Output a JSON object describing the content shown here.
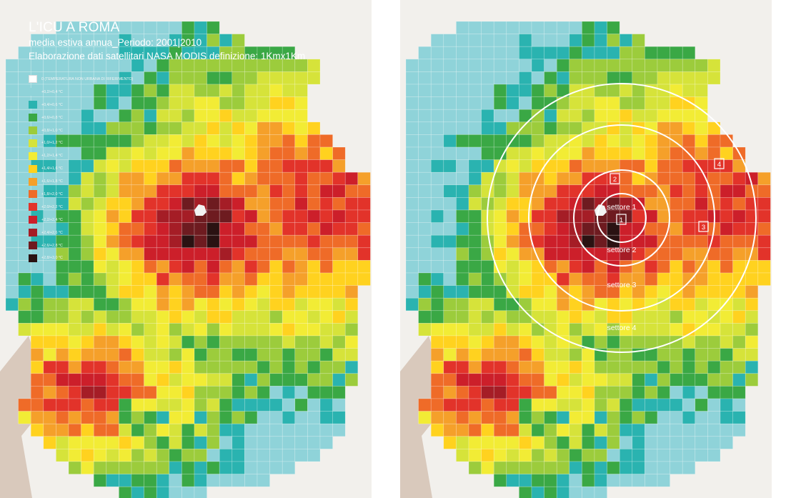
{
  "map": {
    "title": "L'ICU A ROMA",
    "subtitle_period": "media estiva annua_Periodo: 2001|2010",
    "subtitle_source": "Elaborazione dati  satellitari NASA MODIS definizione: 1Kmx1Km",
    "legend": [
      {
        "label": "0 (TEMPERATURA NON URBANA DI RIFERIMENTO)",
        "color": "#ffffff"
      },
      {
        "label": "+0,2/+0,4 °C",
        "color": "#8fd3d9"
      },
      {
        "label": "+0,4/+0,6 °C",
        "color": "#2ab3b0"
      },
      {
        "label": "+0,6/+0,8 °C",
        "color": "#3aa845"
      },
      {
        "label": "+0,8/+1,0 °C",
        "color": "#9ccc3c"
      },
      {
        "label": "+1,0/+1,2 °C",
        "color": "#d6e33a"
      },
      {
        "label": "+1,2/+1,4 °C",
        "color": "#f2ec35"
      },
      {
        "label": "+1,4/+1,6 °C",
        "color": "#ffd21f"
      },
      {
        "label": "+1,6/+1,8 °C",
        "color": "#f5a02a"
      },
      {
        "label": "+1,8/+2,0 °C",
        "color": "#ef6b28"
      },
      {
        "label": "+2,0/+2,2 °C",
        "color": "#e2332a"
      },
      {
        "label": "+2,2/+2,4 °C",
        "color": "#cc1f2a"
      },
      {
        "label": "+2,4/+2,6 °C",
        "color": "#a51d26"
      },
      {
        "label": "+2,6/+2,8 °C",
        "color": "#6e1b20"
      },
      {
        "label": "+2,8/+3,0 °C",
        "color": "#2a1212"
      }
    ],
    "sectors": [
      {
        "label": "settore 1",
        "number": "1"
      },
      {
        "label": "settore 2",
        "number": "2"
      },
      {
        "label": "settore 3",
        "number": "3"
      },
      {
        "label": "settore 4",
        "number": "4"
      }
    ],
    "colors": {
      "background_terrain": "#e8e4dc",
      "sea": "#d9c9bc",
      "grid_line": "#ffffff",
      "ring": "#ffffff"
    }
  }
}
